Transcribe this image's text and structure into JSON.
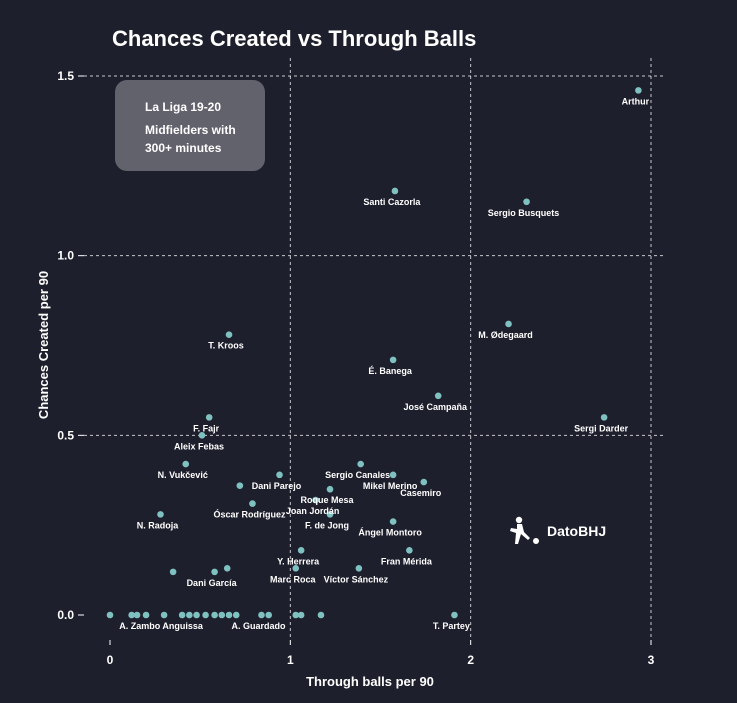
{
  "chart_data": {
    "type": "scatter",
    "title": "Chances Created vs Through Balls",
    "xlabel": "Through balls per 90",
    "ylabel": "Chances Created per 90",
    "xlim": [
      0,
      3
    ],
    "ylim": [
      0,
      1.5
    ],
    "xticks": [
      "0",
      "1",
      "2",
      "3"
    ],
    "yticks": [
      "0.0",
      "0.5",
      "1.0",
      "1.5"
    ],
    "grid": true,
    "point_color": "#7fc1c0",
    "annotation_box": {
      "line1": "La Liga 19-20",
      "line2": "Midfielders with",
      "line3": "300+ minutes"
    },
    "brand": "DatoBHJ",
    "points": [
      {
        "name": "Arthur",
        "x": 2.93,
        "y": 1.46
      },
      {
        "name": "Santi Cazorla",
        "x": 1.58,
        "y": 1.18
      },
      {
        "name": "Sergio Busquets",
        "x": 2.31,
        "y": 1.15
      },
      {
        "name": "M. Ødegaard",
        "x": 2.21,
        "y": 0.81
      },
      {
        "name": "T. Kroos",
        "x": 0.66,
        "y": 0.78
      },
      {
        "name": "É. Banega",
        "x": 1.57,
        "y": 0.71
      },
      {
        "name": "José Campaña",
        "x": 1.82,
        "y": 0.61
      },
      {
        "name": "Sergi Darder",
        "x": 2.74,
        "y": 0.55
      },
      {
        "name": "F. Fajr",
        "x": 0.55,
        "y": 0.55
      },
      {
        "name": "Aleix Febas",
        "x": 0.51,
        "y": 0.5
      },
      {
        "name": "N. Vukčević",
        "x": 0.42,
        "y": 0.42
      },
      {
        "name": "Sergio Canales",
        "x": 1.39,
        "y": 0.42
      },
      {
        "name": "Mikel Merino",
        "x": 1.57,
        "y": 0.39
      },
      {
        "name": "Dani Parejo",
        "x": 0.94,
        "y": 0.39
      },
      {
        "name": "Casemiro",
        "x": 1.74,
        "y": 0.37
      },
      {
        "name": "Roque Mesa",
        "x": 1.22,
        "y": 0.35
      },
      {
        "name": "",
        "x": 0.72,
        "y": 0.36
      },
      {
        "name": "Joan Jordán",
        "x": 1.14,
        "y": 0.32
      },
      {
        "name": "Óscar Rodríguez",
        "x": 0.79,
        "y": 0.31
      },
      {
        "name": "N. Radoja",
        "x": 0.28,
        "y": 0.28
      },
      {
        "name": "F. de Jong",
        "x": 1.22,
        "y": 0.28
      },
      {
        "name": "Ángel Montoro",
        "x": 1.57,
        "y": 0.26
      },
      {
        "name": "Y. Herrera",
        "x": 1.06,
        "y": 0.18
      },
      {
        "name": "Fran Mérida",
        "x": 1.66,
        "y": 0.18
      },
      {
        "name": "Dani García",
        "x": 0.58,
        "y": 0.12
      },
      {
        "name": "",
        "x": 0.35,
        "y": 0.12
      },
      {
        "name": "",
        "x": 0.65,
        "y": 0.13
      },
      {
        "name": "Marc Roca",
        "x": 1.03,
        "y": 0.13
      },
      {
        "name": "Víctor Sánchez",
        "x": 1.38,
        "y": 0.13
      },
      {
        "name": "",
        "x": 0.0,
        "y": 0.0
      },
      {
        "name": "",
        "x": 0.12,
        "y": 0.0
      },
      {
        "name": "",
        "x": 0.15,
        "y": 0.0
      },
      {
        "name": "",
        "x": 0.2,
        "y": 0.0
      },
      {
        "name": "A. Zambo Anguissa",
        "x": 0.3,
        "y": 0.0
      },
      {
        "name": "",
        "x": 0.4,
        "y": 0.0
      },
      {
        "name": "",
        "x": 0.44,
        "y": 0.0
      },
      {
        "name": "",
        "x": 0.48,
        "y": 0.0
      },
      {
        "name": "",
        "x": 0.53,
        "y": 0.0
      },
      {
        "name": "",
        "x": 0.58,
        "y": 0.0
      },
      {
        "name": "",
        "x": 0.62,
        "y": 0.0
      },
      {
        "name": "",
        "x": 0.66,
        "y": 0.0
      },
      {
        "name": "",
        "x": 0.7,
        "y": 0.0
      },
      {
        "name": "A. Guardado",
        "x": 0.84,
        "y": 0.0
      },
      {
        "name": "",
        "x": 0.88,
        "y": 0.0
      },
      {
        "name": "",
        "x": 1.03,
        "y": 0.0
      },
      {
        "name": "",
        "x": 1.06,
        "y": 0.0
      },
      {
        "name": "",
        "x": 1.17,
        "y": 0.0
      },
      {
        "name": "T. Partey",
        "x": 1.91,
        "y": 0.0
      }
    ]
  }
}
